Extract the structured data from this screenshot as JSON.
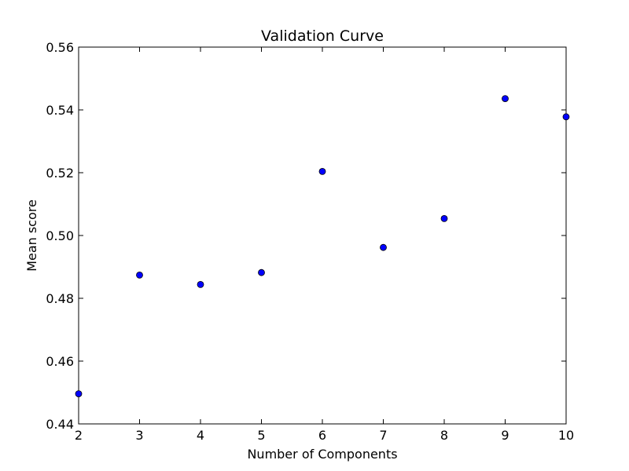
{
  "chart_data": {
    "type": "scatter",
    "title": "Validation Curve",
    "xlabel": "Number of Components",
    "ylabel": "Mean score",
    "xlim": [
      2,
      10
    ],
    "ylim": [
      0.44,
      0.56
    ],
    "xticks": [
      2,
      3,
      4,
      5,
      6,
      7,
      8,
      9,
      10
    ],
    "yticks": [
      0.44,
      0.46,
      0.48,
      0.5,
      0.52,
      0.54,
      0.56
    ],
    "ytick_labels": [
      "0.44",
      "0.46",
      "0.48",
      "0.50",
      "0.52",
      "0.54",
      "0.56"
    ],
    "grid": false,
    "marker_color": "#0000ff",
    "points": [
      {
        "x": 2,
        "y": 0.4496
      },
      {
        "x": 3,
        "y": 0.4874
      },
      {
        "x": 4,
        "y": 0.4844
      },
      {
        "x": 5,
        "y": 0.4882
      },
      {
        "x": 6,
        "y": 0.5204
      },
      {
        "x": 7,
        "y": 0.4962
      },
      {
        "x": 8,
        "y": 0.5054
      },
      {
        "x": 9,
        "y": 0.5436
      },
      {
        "x": 10,
        "y": 0.5378
      }
    ]
  }
}
